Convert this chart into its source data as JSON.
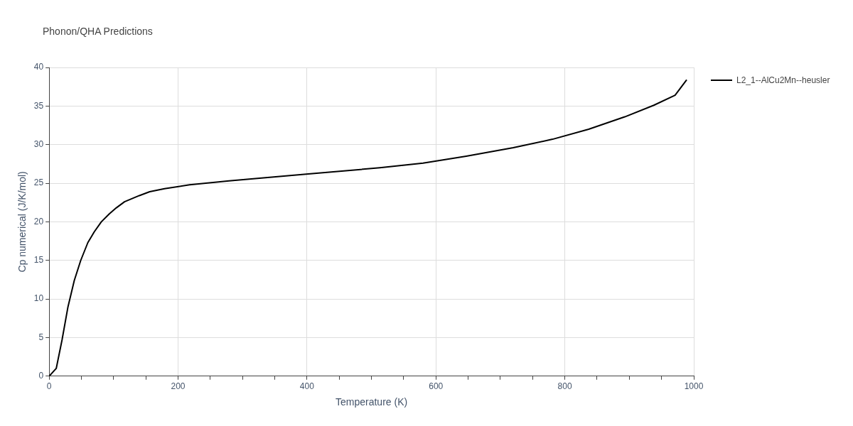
{
  "chart_data": {
    "type": "line",
    "title": "Phonon/QHA Predictions",
    "xlabel": "Temperature (K)",
    "ylabel": "Cp numerical (J/K/mol)",
    "series": [
      {
        "name": "L2_1--AlCu2Mn--heusler",
        "color": "#000000",
        "x": [
          0,
          11,
          20,
          29,
          39,
          49,
          60,
          70,
          81,
          93,
          104,
          117,
          140,
          156,
          179,
          218,
          279,
          402,
          513,
          580,
          647,
          720,
          781,
          837,
          893,
          938,
          971,
          989
        ],
        "values": [
          0,
          1.0,
          4.7,
          8.9,
          12.4,
          15.0,
          17.3,
          18.7,
          20.0,
          21.0,
          21.8,
          22.6,
          23.4,
          23.9,
          24.3,
          24.8,
          25.3,
          26.2,
          27.0,
          27.6,
          28.5,
          29.6,
          30.7,
          32.0,
          33.6,
          35.1,
          36.4,
          38.4
        ]
      }
    ],
    "xlim": [
      0,
      1000
    ],
    "xticks": [
      0,
      {
        "value": 50,
        "label": null
      },
      200,
      {
        "value": 150,
        "label": null
      },
      {
        "value": 100,
        "label": null
      },
      {
        "value": 250,
        "label": null
      },
      400,
      {
        "value": 300,
        "label": null
      },
      {
        "value": 350,
        "label": null
      },
      {
        "value": 450,
        "label": null
      },
      600,
      {
        "value": 500,
        "label": null
      },
      {
        "value": 550,
        "label": null
      },
      {
        "value": 650,
        "label": null
      },
      800,
      {
        "value": 700,
        "label": null
      },
      {
        "value": 750,
        "label": null
      },
      {
        "value": 850,
        "label": null
      },
      1000,
      {
        "value": 900,
        "label": null
      },
      {
        "value": 950,
        "label": null
      }
    ],
    "ylim": [
      0,
      40
    ],
    "yticks": [
      0,
      5,
      10,
      15,
      20,
      25,
      30,
      35,
      40
    ],
    "grid": true,
    "legend": "top right",
    "marker": "none",
    "line_style": "solid"
  }
}
